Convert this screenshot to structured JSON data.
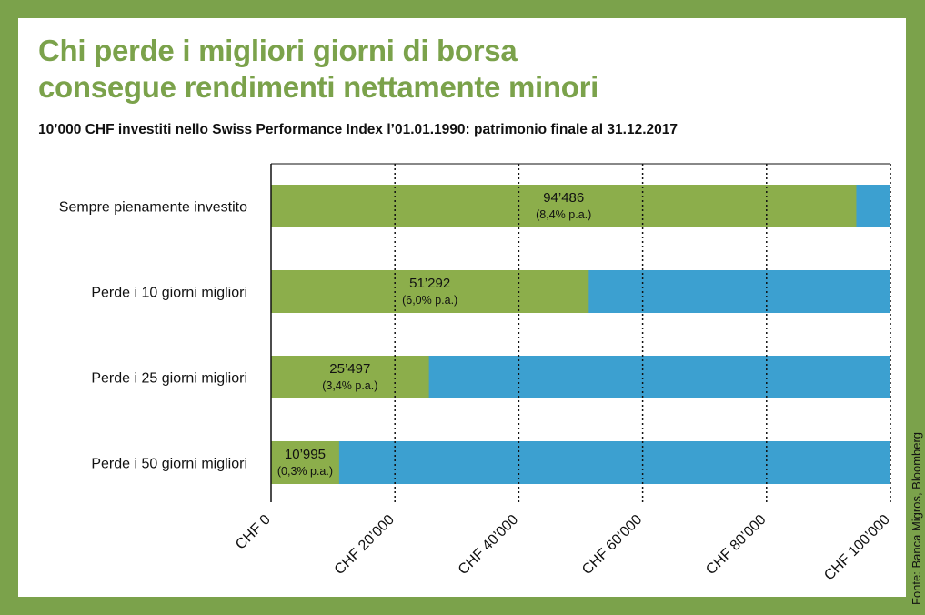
{
  "header": {
    "title_line1": "Chi perde i migliori giorni di borsa",
    "title_line2": "consegue rendimenti nettamente minori",
    "subtitle": "10’000 CHF investiti nello Swiss Performance Index l’01.01.1990: patrimonio finale al 31.12.2017"
  },
  "source": "Fonte: Banca Migros, Bloomberg",
  "colors": {
    "frame": "#7ba24b",
    "bar": "#8cae4b",
    "remainder": "#3ca0d0"
  },
  "chart_data": {
    "type": "bar",
    "orientation": "horizontal",
    "categories": [
      "Sempre pienamente investito",
      "Perde i 10 giorni migliori",
      "Perde i 25 giorni migliori",
      "Perde i 50 giorni migliori"
    ],
    "values": [
      94486,
      51292,
      25497,
      10995
    ],
    "value_labels": [
      "94’486",
      "51’292",
      "25’497",
      "10’995"
    ],
    "rate_labels": [
      "(8,4% p.a.)",
      "(6,0% p.a.)",
      "(3,4% p.a.)",
      "(0,3% p.a.)"
    ],
    "xlim": [
      0,
      100000
    ],
    "xticks": [
      0,
      20000,
      40000,
      60000,
      80000,
      100000
    ],
    "xtick_labels": [
      "CHF 0",
      "CHF 20’000",
      "CHF 40’000",
      "CHF 60’000",
      "CHF 80’000",
      "CHF 100’000"
    ],
    "grid": "dotted vertical",
    "legend": "none"
  }
}
